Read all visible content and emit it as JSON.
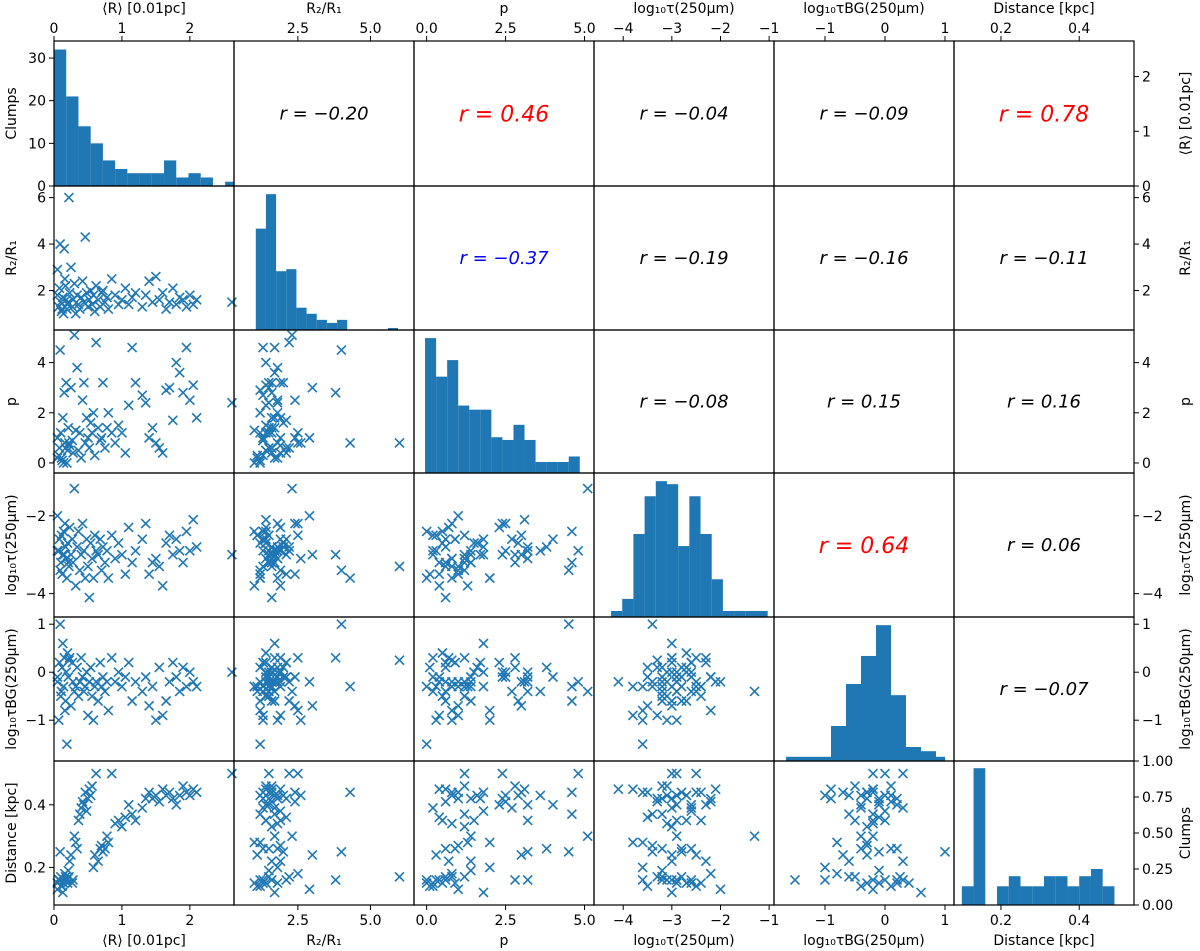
{
  "chart_data": {
    "type": "scatter",
    "colors": {
      "mark": "#1f77b4",
      "positive": "#ff0000",
      "negative": "#0000ff",
      "neutral": "#000000"
    },
    "variables": [
      {
        "label": "⟨R⟩ [0.01pc]",
        "range": [
          0,
          2.65
        ],
        "ticks": [
          0,
          1,
          2
        ],
        "tick_labels": [
          "0",
          "1",
          "2"
        ]
      },
      {
        "label": "R₂/R₁",
        "range": [
          0.3,
          6.5
        ],
        "ticks": [
          2.5,
          5.0
        ],
        "tick_labels": [
          "2.5",
          "5.0"
        ],
        "ticks_left": [
          2,
          4,
          6
        ],
        "tick_labels_left": [
          "2",
          "4",
          "6"
        ]
      },
      {
        "label": "p",
        "range": [
          -0.4,
          5.3
        ],
        "ticks": [
          0.0,
          2.5,
          5.0
        ],
        "tick_labels": [
          "0.0",
          "2.5",
          "5.0"
        ],
        "ticks_left": [
          0,
          2,
          4
        ],
        "tick_labels_left": [
          "0",
          "2",
          "4"
        ]
      },
      {
        "label": "log₁₀τ(250μm)",
        "range": [
          -4.6,
          -0.9
        ],
        "ticks": [
          -4,
          -3,
          -2,
          -1
        ],
        "tick_labels": [
          "−4",
          "−3",
          "−2",
          "−1"
        ],
        "ticks_left": [
          -4,
          -2
        ],
        "tick_labels_left": [
          "−4",
          "−2"
        ]
      },
      {
        "label": "log₁₀τBG(250μm)",
        "range": [
          -1.85,
          1.15
        ],
        "ticks": [
          -1,
          0,
          1
        ],
        "tick_labels": [
          "−1",
          "0",
          "1"
        ]
      },
      {
        "label": "Distance [kpc]",
        "range": [
          0.08,
          0.54
        ],
        "ticks": [
          0.2,
          0.4
        ],
        "tick_labels": [
          "0.2",
          "0.4"
        ],
        "ticks_left": [
          0.2,
          0.4
        ],
        "tick_labels_left": [
          "0.2",
          "0.4"
        ]
      }
    ],
    "histogram_axis": {
      "label": "Clumps",
      "top_ticks": [
        "0",
        "10",
        "20",
        "30"
      ],
      "top_range": [
        0,
        34
      ],
      "bottom_ticks": [
        "0.00",
        "0.25",
        "0.50",
        "0.75",
        "1.00"
      ],
      "bottom_range": [
        0,
        1.0
      ]
    },
    "correlations": [
      {
        "row": 0,
        "col": 1,
        "text": "r = −0.20",
        "color": "neutral",
        "size": "normal"
      },
      {
        "row": 0,
        "col": 2,
        "text": "r = 0.46",
        "color": "positive",
        "size": "large"
      },
      {
        "row": 0,
        "col": 3,
        "text": "r = −0.04",
        "color": "neutral",
        "size": "normal"
      },
      {
        "row": 0,
        "col": 4,
        "text": "r = −0.09",
        "color": "neutral",
        "size": "normal"
      },
      {
        "row": 0,
        "col": 5,
        "text": "r = 0.78",
        "color": "positive",
        "size": "large"
      },
      {
        "row": 1,
        "col": 2,
        "text": "r = −0.37",
        "color": "negative",
        "size": "normal"
      },
      {
        "row": 1,
        "col": 3,
        "text": "r = −0.19",
        "color": "neutral",
        "size": "normal"
      },
      {
        "row": 1,
        "col": 4,
        "text": "r = −0.16",
        "color": "neutral",
        "size": "normal"
      },
      {
        "row": 1,
        "col": 5,
        "text": "r = −0.11",
        "color": "neutral",
        "size": "normal"
      },
      {
        "row": 2,
        "col": 3,
        "text": "r = −0.08",
        "color": "neutral",
        "size": "normal"
      },
      {
        "row": 2,
        "col": 4,
        "text": "r = 0.15",
        "color": "neutral",
        "size": "normal"
      },
      {
        "row": 2,
        "col": 5,
        "text": "r = 0.16",
        "color": "neutral",
        "size": "normal"
      },
      {
        "row": 3,
        "col": 4,
        "text": "r = 0.64",
        "color": "positive",
        "size": "large"
      },
      {
        "row": 3,
        "col": 5,
        "text": "r = 0.06",
        "color": "neutral",
        "size": "normal"
      },
      {
        "row": 4,
        "col": 5,
        "text": "r = −0.07",
        "color": "neutral",
        "size": "normal"
      }
    ],
    "histograms": [
      {
        "var": 0,
        "edges": [
          0.0,
          0.18,
          0.36,
          0.54,
          0.72,
          0.9,
          1.08,
          1.26,
          1.44,
          1.62,
          1.8,
          1.98,
          2.16,
          2.34,
          2.52,
          2.65
        ],
        "counts": [
          32,
          21,
          14,
          10,
          6,
          4,
          3,
          3,
          3,
          6,
          2,
          3,
          2,
          0,
          1
        ]
      },
      {
        "var": 1,
        "edges": [
          1.05,
          1.4,
          1.75,
          2.1,
          2.45,
          2.8,
          3.15,
          3.5,
          3.85,
          4.2,
          4.55,
          4.9,
          5.25,
          5.6,
          5.95
        ],
        "counts": [
          5.0,
          6.7,
          2.9,
          3.0,
          1.1,
          0.8,
          0.5,
          0.35,
          0.5,
          0.0,
          0.0,
          0.0,
          0.0,
          0.1
        ]
      },
      {
        "var": 2,
        "edges": [
          -0.05,
          0.3,
          0.65,
          1.0,
          1.35,
          1.7,
          2.05,
          2.4,
          2.75,
          3.1,
          3.45,
          3.8,
          4.15,
          4.5,
          4.85
        ],
        "counts": [
          0.98,
          0.7,
          0.82,
          0.49,
          0.46,
          0.46,
          0.26,
          0.24,
          0.35,
          0.24,
          0.08,
          0.08,
          0.08,
          0.12
        ]
      },
      {
        "var": 3,
        "edges": [
          -4.25,
          -4.02,
          -3.79,
          -3.56,
          -3.33,
          -3.1,
          -2.87,
          -2.64,
          -2.41,
          -2.18,
          -1.95,
          -1.72,
          -1.49,
          -1.26,
          -1.03
        ],
        "counts": [
          0.04,
          0.12,
          0.55,
          0.8,
          0.9,
          0.88,
          0.47,
          0.8,
          0.55,
          0.25,
          0.04,
          0.04,
          0.04,
          0.04
        ]
      },
      {
        "var": 4,
        "edges": [
          -1.65,
          -1.4,
          -1.15,
          -0.9,
          -0.65,
          -0.4,
          -0.15,
          0.1,
          0.35,
          0.6,
          0.85,
          1.0
        ],
        "counts": [
          0.03,
          0.03,
          0.03,
          0.25,
          0.55,
          0.75,
          0.97,
          0.47,
          0.1,
          0.07,
          0.03
        ]
      },
      {
        "var": 5,
        "edges": [
          0.1,
          0.13,
          0.16,
          0.19,
          0.22,
          0.25,
          0.28,
          0.31,
          0.34,
          0.37,
          0.4,
          0.43,
          0.46,
          0.49
        ],
        "counts": [
          0.13,
          0.95,
          0.0,
          0.13,
          0.2,
          0.13,
          0.13,
          0.2,
          0.2,
          0.13,
          0.2,
          0.25,
          0.13
        ]
      }
    ],
    "points": [
      [
        0.05,
        1.8,
        0.2,
        -2.9,
        -0.1,
        0.15
      ],
      [
        0.08,
        2.1,
        0.6,
        -2.6,
        0.2,
        0.16
      ],
      [
        0.1,
        1.5,
        1.2,
        -3.2,
        -0.5,
        0.17
      ],
      [
        0.12,
        1.2,
        0.1,
        -3.5,
        0.1,
        0.14
      ],
      [
        0.14,
        1.0,
        0.0,
        -2.4,
        -0.3,
        0.15
      ],
      [
        0.15,
        3.8,
        2.8,
        -3.0,
        0.3,
        0.16
      ],
      [
        0.16,
        2.5,
        0.8,
        -2.2,
        -0.8,
        0.18
      ],
      [
        0.18,
        1.6,
        3.2,
        -3.1,
        0.0,
        0.16
      ],
      [
        0.2,
        1.4,
        0.5,
        -2.7,
        0.4,
        0.15
      ],
      [
        0.22,
        6.0,
        0.8,
        -3.3,
        0.25,
        0.17
      ],
      [
        0.05,
        2.9,
        1.0,
        -2.0,
        -0.2,
        0.13
      ],
      [
        0.07,
        1.3,
        0.3,
        -2.9,
        -1.0,
        0.16
      ],
      [
        0.09,
        4.0,
        4.5,
        -3.4,
        1.0,
        0.25
      ],
      [
        0.11,
        1.1,
        0.2,
        -2.5,
        -0.4,
        0.14
      ],
      [
        0.13,
        1.7,
        1.8,
        -3.0,
        0.6,
        0.12
      ],
      [
        0.17,
        2.2,
        0.6,
        -2.8,
        -0.6,
        0.17
      ],
      [
        0.19,
        1.2,
        0.0,
        -3.6,
        -1.5,
        0.16
      ],
      [
        0.21,
        1.5,
        1.4,
        -3.2,
        -0.1,
        0.19
      ],
      [
        0.23,
        1.9,
        0.7,
        -2.3,
        0.3,
        0.22
      ],
      [
        0.25,
        3.0,
        3.0,
        -3.0,
        -0.7,
        0.24
      ],
      [
        0.27,
        1.3,
        0.9,
        -2.6,
        0.2,
        0.15
      ],
      [
        0.28,
        1.6,
        0.4,
        -3.2,
        -0.2,
        0.16
      ],
      [
        0.3,
        2.3,
        5.1,
        -1.3,
        -0.4,
        0.3
      ],
      [
        0.32,
        1.0,
        1.3,
        -3.8,
        -0.3,
        0.28
      ],
      [
        0.34,
        1.8,
        3.8,
        -2.8,
        0.1,
        0.26
      ],
      [
        0.36,
        1.4,
        0.5,
        -2.4,
        -0.5,
        0.35
      ],
      [
        0.38,
        1.2,
        1.2,
        -3.4,
        -0.2,
        0.37
      ],
      [
        0.4,
        1.7,
        0.2,
        -3.0,
        0.3,
        0.39
      ],
      [
        0.42,
        2.4,
        2.5,
        -2.2,
        -0.1,
        0.41
      ],
      [
        0.44,
        1.5,
        3.2,
        -2.9,
        -0.4,
        0.4
      ],
      [
        0.46,
        4.3,
        0.8,
        -3.6,
        -0.3,
        0.44
      ],
      [
        0.48,
        1.9,
        1.8,
        -2.6,
        0.0,
        0.38
      ],
      [
        0.5,
        1.3,
        1.0,
        -3.3,
        -0.9,
        0.42
      ],
      [
        0.52,
        1.6,
        0.6,
        -4.1,
        -0.2,
        0.45
      ],
      [
        0.54,
        2.0,
        1.6,
        -2.7,
        0.1,
        0.43
      ],
      [
        0.56,
        1.4,
        1.2,
        -3.1,
        -0.5,
        0.46
      ],
      [
        0.58,
        1.8,
        2.0,
        -3.6,
        -1.0,
        0.2
      ],
      [
        0.6,
        1.1,
        0.3,
        -2.5,
        -0.3,
        0.24
      ],
      [
        0.62,
        2.2,
        4.8,
        -2.9,
        -0.2,
        0.5
      ],
      [
        0.65,
        1.6,
        1.4,
        -3.0,
        -0.6,
        0.22
      ],
      [
        0.68,
        1.3,
        0.9,
        -2.6,
        0.2,
        0.26
      ],
      [
        0.7,
        1.9,
        1.0,
        -3.4,
        -0.3,
        0.27
      ],
      [
        0.72,
        2.0,
        3.2,
        -2.8,
        -0.1,
        0.25
      ],
      [
        0.75,
        1.5,
        0.6,
        -3.2,
        -0.4,
        0.26
      ],
      [
        0.78,
        1.7,
        1.4,
        -2.9,
        -0.2,
        0.3
      ],
      [
        0.8,
        1.2,
        2.0,
        -3.6,
        -0.8,
        0.28
      ],
      [
        0.85,
        2.5,
        1.2,
        -2.5,
        0.3,
        0.5
      ],
      [
        0.9,
        1.8,
        0.8,
        -3.1,
        -0.2,
        0.34
      ],
      [
        0.95,
        1.4,
        1.5,
        -2.7,
        0.0,
        0.35
      ],
      [
        1.0,
        1.6,
        1.2,
        -3.0,
        -0.3,
        0.33
      ],
      [
        1.05,
        2.1,
        0.4,
        -3.5,
        -0.1,
        0.36
      ],
      [
        1.1,
        1.4,
        2.3,
        -2.3,
        0.2,
        0.4
      ],
      [
        1.15,
        1.7,
        4.6,
        -3.2,
        -0.6,
        0.37
      ],
      [
        1.2,
        1.9,
        3.2,
        -2.9,
        -0.2,
        0.35
      ],
      [
        1.3,
        1.3,
        2.7,
        -2.6,
        -0.4,
        0.39
      ],
      [
        1.35,
        1.8,
        2.4,
        -2.2,
        -0.1,
        0.42
      ],
      [
        1.4,
        2.4,
        1.0,
        -3.5,
        -0.7,
        0.44
      ],
      [
        1.45,
        1.5,
        1.4,
        -3.2,
        -0.3,
        0.42
      ],
      [
        1.5,
        2.6,
        0.8,
        -3.1,
        -1.0,
        0.43
      ],
      [
        1.55,
        1.6,
        0.6,
        -3.3,
        0.1,
        0.41
      ],
      [
        1.6,
        1.9,
        0.4,
        -3.8,
        -0.9,
        0.45
      ],
      [
        1.65,
        1.2,
        2.9,
        -2.7,
        -0.6,
        0.43
      ],
      [
        1.7,
        1.5,
        3.0,
        -2.5,
        -0.2,
        0.44
      ],
      [
        1.75,
        2.1,
        1.7,
        -3.0,
        0.2,
        0.42
      ],
      [
        1.8,
        1.4,
        4.0,
        -2.6,
        -0.1,
        0.4
      ],
      [
        1.85,
        1.7,
        3.6,
        -2.9,
        -0.4,
        0.43
      ],
      [
        1.9,
        1.6,
        2.8,
        -3.2,
        0.1,
        0.46
      ],
      [
        1.95,
        1.3,
        4.6,
        -2.4,
        -0.3,
        0.44
      ],
      [
        2.0,
        1.8,
        2.5,
        -2.9,
        0.0,
        0.43
      ],
      [
        2.05,
        1.4,
        3.1,
        -2.1,
        -0.2,
        0.45
      ],
      [
        2.1,
        1.6,
        1.8,
        -2.8,
        -0.3,
        0.44
      ],
      [
        2.62,
        1.5,
        2.4,
        -3.0,
        0.0,
        0.5
      ]
    ]
  }
}
